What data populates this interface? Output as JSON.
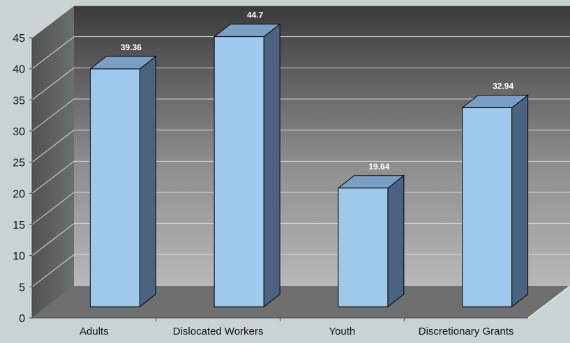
{
  "chart_data": {
    "type": "bar",
    "categories": [
      "Adults",
      "Dislocated Workers",
      "Youth",
      "Discretionary Grants"
    ],
    "values": [
      39.36,
      44.7,
      19.64,
      32.94
    ],
    "data_labels": [
      "39.36",
      "44.7",
      "19.64",
      "32.94"
    ],
    "title": "",
    "xlabel": "",
    "ylabel": "",
    "ylim": [
      0,
      45
    ],
    "yticks": [
      "0",
      "5",
      "10",
      "15",
      "20",
      "25",
      "30",
      "35",
      "40",
      "45"
    ],
    "grid": true,
    "legend": "none",
    "colors": {
      "bar_front": "#9fc9ec",
      "bar_top": "#7a9fc4",
      "bar_side": "#4a6380",
      "floor": "#6f6f6f",
      "background": "#c9d3d4",
      "label": "#ffffff"
    }
  }
}
